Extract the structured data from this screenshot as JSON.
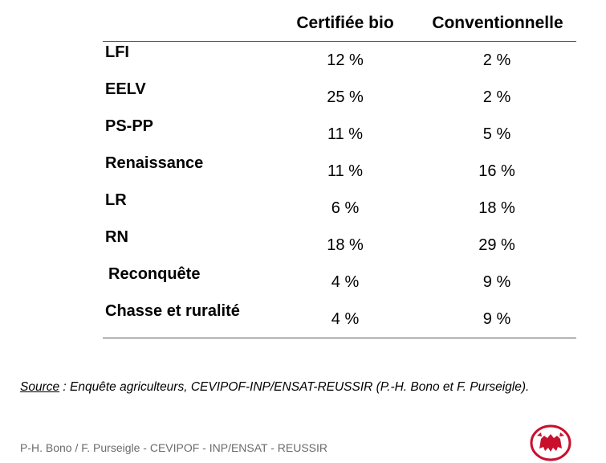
{
  "columns": [
    "Certifiée bio",
    "Conventionnelle"
  ],
  "rows": [
    {
      "party": "LFI",
      "bio": "12 %",
      "conv": "2 %"
    },
    {
      "party": "EELV",
      "bio": "25 %",
      "conv": "2 %"
    },
    {
      "party": "PS-PP",
      "bio": "11 %",
      "conv": "5 %"
    },
    {
      "party": "Renaissance",
      "bio": "11 %",
      "conv": "16 %"
    },
    {
      "party": "LR",
      "bio": "6 %",
      "conv": "18 %"
    },
    {
      "party": "RN",
      "bio": "18 %",
      "conv": "29 %"
    },
    {
      "party": " Reconquête",
      "bio": "4 %",
      "conv": "9 %"
    },
    {
      "party": "Chasse et ruralité",
      "bio": "4 %",
      "conv": "9 %"
    }
  ],
  "chart_data": {
    "type": "table",
    "columns": [
      "Certifiée bio",
      "Conventionnelle"
    ],
    "categories": [
      "LFI",
      "EELV",
      "PS-PP",
      "Renaissance",
      "LR",
      "RN",
      "Reconquête",
      "Chasse et ruralité"
    ],
    "series": [
      {
        "name": "Certifiée bio",
        "values": [
          12,
          25,
          11,
          11,
          6,
          18,
          4,
          4
        ]
      },
      {
        "name": "Conventionnelle",
        "values": [
          2,
          2,
          5,
          16,
          18,
          29,
          9,
          9
        ]
      }
    ],
    "unit": "%"
  },
  "source": {
    "label": "Source",
    "text": " : Enquête agriculteurs, CEVIPOF-INP/ENSAT-REUSSIR (P.-H. Bono et F. Purseigle)."
  },
  "footer": "P-H. Bono / F. Purseigle - CEVIPOF - INP/ENSAT - REUSSIR",
  "colors": {
    "logo": "#c8102e",
    "rule": "#555555",
    "footer": "#6b6b6b"
  },
  "logo_icon": "red-emblem-icon"
}
